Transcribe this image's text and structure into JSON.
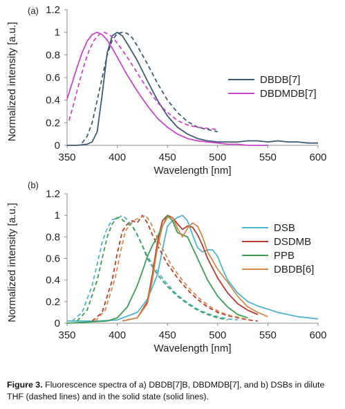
{
  "figure_caption": {
    "label": "Figure 3.",
    "text": "Fluorescence spectra of a) DBDB[7]B, DBDMDB[7], and b) DSBs in dilute THF (dashed lines) and in the solid state (solid lines)."
  },
  "chart_data": [
    {
      "type": "line",
      "panel_label": "(a)",
      "xlabel": "Wavelength [nm]",
      "ylabel": "Normalized intensity [a.u.]",
      "xlim": [
        350,
        600
      ],
      "ylim": [
        0,
        1.2
      ],
      "xticks": [
        "350",
        "400",
        "450",
        "500",
        "550",
        "600"
      ],
      "yticks": [
        "0",
        "0.2",
        "0.4",
        "0.6",
        "0.8",
        "1",
        "1.2"
      ],
      "grid": false,
      "legend_position": "right",
      "series": [
        {
          "name": "DBDB[7]",
          "color": "#3d5a75",
          "style": "solid",
          "legend": true,
          "x": [
            350,
            360,
            370,
            375,
            380,
            385,
            390,
            395,
            400,
            405,
            410,
            420,
            430,
            440,
            450,
            460,
            470,
            480,
            490,
            500,
            510,
            520,
            530,
            540,
            550,
            560,
            570,
            580,
            590,
            600
          ],
          "y": [
            0.0,
            0.0,
            0.01,
            0.03,
            0.12,
            0.45,
            0.82,
            0.97,
            1.0,
            0.97,
            0.9,
            0.75,
            0.57,
            0.4,
            0.26,
            0.16,
            0.1,
            0.06,
            0.04,
            0.03,
            0.03,
            0.03,
            0.04,
            0.04,
            0.03,
            0.04,
            0.03,
            0.03,
            0.02,
            0.02
          ]
        },
        {
          "name": "",
          "color": "#3d5a75",
          "style": "dashed",
          "legend": false,
          "x": [
            365,
            370,
            375,
            380,
            385,
            390,
            395,
            400,
            405,
            410,
            415,
            420,
            430,
            440,
            450,
            460,
            470,
            480,
            490,
            500
          ],
          "y": [
            0.02,
            0.08,
            0.2,
            0.4,
            0.6,
            0.8,
            0.93,
            0.99,
            1.0,
            0.99,
            0.95,
            0.88,
            0.72,
            0.55,
            0.4,
            0.29,
            0.21,
            0.16,
            0.14,
            0.12
          ]
        },
        {
          "name": "DBDMDB[7]",
          "color": "#cc44cc",
          "style": "solid",
          "legend": true,
          "x": [
            350,
            355,
            360,
            365,
            370,
            375,
            380,
            385,
            390,
            395,
            400,
            410,
            420,
            430,
            440,
            450,
            460,
            470,
            480,
            490,
            500,
            510,
            520,
            530,
            540,
            550
          ],
          "y": [
            0.41,
            0.55,
            0.69,
            0.82,
            0.92,
            0.98,
            1.0,
            0.98,
            0.93,
            0.86,
            0.78,
            0.62,
            0.48,
            0.35,
            0.24,
            0.16,
            0.1,
            0.06,
            0.04,
            0.03,
            0.02,
            0.01,
            0.01,
            0.0,
            0.0,
            0.0
          ]
        },
        {
          "name": "",
          "color": "#cc44cc",
          "style": "dashed",
          "legend": false,
          "x": [
            352,
            357,
            362,
            367,
            372,
            377,
            382,
            387,
            392,
            397,
            402,
            410,
            420,
            430,
            440,
            450,
            460,
            470,
            480,
            490,
            500
          ],
          "y": [
            0.22,
            0.38,
            0.55,
            0.71,
            0.84,
            0.93,
            0.98,
            1.0,
            0.98,
            0.94,
            0.88,
            0.78,
            0.64,
            0.5,
            0.38,
            0.29,
            0.22,
            0.18,
            0.16,
            0.15,
            0.14
          ]
        }
      ]
    },
    {
      "type": "line",
      "panel_label": "(b)",
      "xlabel": "Wavelength [nm]",
      "ylabel": "Normalized intensity [a.u.]",
      "xlim": [
        350,
        600
      ],
      "ylim": [
        0,
        1.2
      ],
      "xticks": [
        "350",
        "400",
        "450",
        "500",
        "550",
        "600"
      ],
      "yticks": [
        "0",
        "0.2",
        "0.4",
        "0.6",
        "0.8",
        "1",
        "1.2"
      ],
      "grid": false,
      "legend_position": "right",
      "series": [
        {
          "name": "DSB",
          "color": "#4cb4cf",
          "style": "solid",
          "legend": true,
          "x": [
            350,
            380,
            400,
            420,
            430,
            440,
            445,
            450,
            455,
            460,
            465,
            470,
            475,
            480,
            485,
            490,
            495,
            500,
            505,
            510,
            520,
            530,
            540,
            550,
            560,
            570,
            580,
            590,
            600
          ],
          "y": [
            0.02,
            0.02,
            0.03,
            0.1,
            0.22,
            0.45,
            0.68,
            0.9,
            0.95,
            0.98,
            1.0,
            0.95,
            0.82,
            0.7,
            0.66,
            0.68,
            0.68,
            0.62,
            0.5,
            0.4,
            0.28,
            0.2,
            0.16,
            0.13,
            0.1,
            0.08,
            0.06,
            0.05,
            0.04
          ]
        },
        {
          "name": "",
          "color": "#4cb4cf",
          "style": "dashed",
          "legend": false,
          "x": [
            355,
            365,
            375,
            380,
            385,
            390,
            395,
            400,
            405,
            410,
            415,
            420,
            430,
            440,
            450,
            460,
            470,
            480,
            490,
            500,
            510,
            520
          ],
          "y": [
            0.02,
            0.1,
            0.35,
            0.55,
            0.75,
            0.88,
            0.96,
            0.97,
            1.0,
            0.96,
            0.9,
            0.82,
            0.62,
            0.48,
            0.36,
            0.26,
            0.19,
            0.13,
            0.09,
            0.06,
            0.04,
            0.03
          ]
        },
        {
          "name": "DSDMB",
          "color": "#b83a2e",
          "style": "solid",
          "legend": true,
          "x": [
            405,
            420,
            430,
            435,
            440,
            445,
            450,
            455,
            460,
            465,
            470,
            475,
            480,
            485,
            490,
            500,
            510,
            520,
            530,
            540
          ],
          "y": [
            0.02,
            0.05,
            0.2,
            0.45,
            0.75,
            0.95,
            1.0,
            0.98,
            0.92,
            0.87,
            0.9,
            0.89,
            0.82,
            0.72,
            0.6,
            0.42,
            0.28,
            0.18,
            0.12,
            0.08
          ]
        },
        {
          "name": "",
          "color": "#b83a2e",
          "style": "dashed",
          "legend": false,
          "x": [
            375,
            385,
            395,
            400,
            405,
            410,
            415,
            420,
            425,
            430,
            435,
            440,
            450,
            460,
            470,
            480,
            490,
            500,
            510,
            520,
            530,
            540
          ],
          "y": [
            0.02,
            0.1,
            0.4,
            0.65,
            0.85,
            0.92,
            0.95,
            0.93,
            1.0,
            0.93,
            0.82,
            0.72,
            0.55,
            0.42,
            0.31,
            0.22,
            0.15,
            0.1,
            0.07,
            0.05,
            0.03,
            0.02
          ]
        },
        {
          "name": "PPB",
          "color": "#3d9b54",
          "style": "solid",
          "legend": true,
          "x": [
            350,
            370,
            390,
            400,
            410,
            420,
            425,
            430,
            435,
            440,
            445,
            450,
            455,
            460,
            465,
            470,
            480,
            490,
            500,
            510,
            520,
            530
          ],
          "y": [
            0.0,
            0.01,
            0.02,
            0.05,
            0.15,
            0.35,
            0.48,
            0.62,
            0.72,
            0.8,
            0.9,
            1.0,
            0.95,
            0.84,
            0.82,
            0.8,
            0.6,
            0.4,
            0.25,
            0.15,
            0.08,
            0.05
          ]
        },
        {
          "name": "",
          "color": "#3d9b54",
          "style": "dashed",
          "legend": false,
          "x": [
            360,
            370,
            380,
            385,
            390,
            395,
            400,
            405,
            410,
            415,
            420,
            425,
            430,
            440,
            450,
            460,
            470,
            480,
            490,
            500,
            510
          ],
          "y": [
            0.02,
            0.12,
            0.4,
            0.6,
            0.8,
            0.92,
            0.98,
            0.96,
            0.92,
            0.9,
            0.82,
            0.72,
            0.6,
            0.45,
            0.34,
            0.25,
            0.18,
            0.12,
            0.08,
            0.05,
            0.03
          ]
        },
        {
          "name": "DBDB[6]",
          "color": "#d08a4a",
          "style": "solid",
          "legend": true,
          "x": [
            405,
            420,
            430,
            435,
            440,
            445,
            450,
            455,
            460,
            465,
            470,
            475,
            480,
            485,
            490,
            500,
            510,
            520,
            530,
            540,
            550
          ],
          "y": [
            0.02,
            0.05,
            0.18,
            0.4,
            0.7,
            0.9,
            0.98,
            0.98,
            0.88,
            0.8,
            0.88,
            0.93,
            0.9,
            0.8,
            0.66,
            0.5,
            0.38,
            0.25,
            0.15,
            0.1,
            0.06
          ]
        },
        {
          "name": "",
          "color": "#d08a4a",
          "style": "dashed",
          "legend": false,
          "x": [
            378,
            388,
            398,
            403,
            408,
            413,
            418,
            423,
            428,
            433,
            438,
            443,
            453,
            463,
            473,
            483,
            493,
            503,
            513,
            523,
            533
          ],
          "y": [
            0.02,
            0.12,
            0.42,
            0.65,
            0.85,
            0.92,
            0.96,
            0.98,
            1.0,
            0.94,
            0.83,
            0.73,
            0.55,
            0.42,
            0.31,
            0.22,
            0.15,
            0.1,
            0.07,
            0.05,
            0.03
          ]
        }
      ]
    }
  ]
}
